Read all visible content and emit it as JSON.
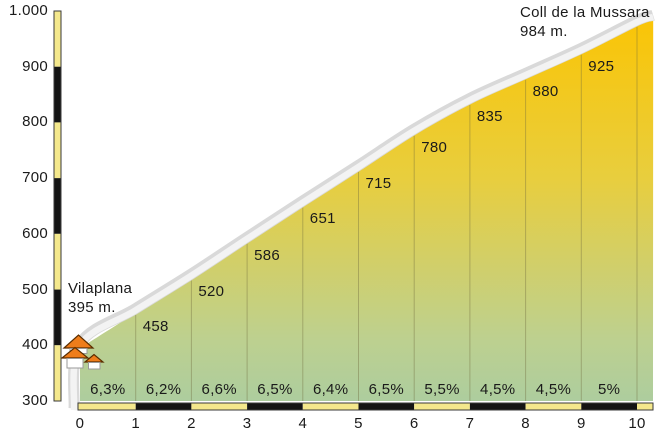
{
  "summit": {
    "name": "Coll de la Mussara",
    "elevation": "984 m."
  },
  "start": {
    "name": "Vilaplana",
    "elevation": "395 m."
  },
  "chart_data": {
    "type": "area",
    "title": "Coll de la Mussara 984 m.",
    "xlabel": "",
    "ylabel": "",
    "xlim": [
      0,
      10.29
    ],
    "ylim": [
      300,
      1000
    ],
    "grid": "vertical-km-lines",
    "legend": "none",
    "x_ticks": {
      "values": [
        0,
        1,
        2,
        3,
        4,
        5,
        6,
        7,
        8,
        9,
        10
      ],
      "labels": [
        "0",
        "1",
        "2",
        "3",
        "4",
        "5",
        "6",
        "7",
        "8",
        "9",
        "10"
      ]
    },
    "y_ticks": {
      "values": [
        1000,
        900,
        800,
        700,
        600,
        500,
        400,
        300
      ],
      "labels": [
        "1.000",
        "900",
        "800",
        "700",
        "600",
        "500",
        "400",
        "300"
      ]
    },
    "profile_points": {
      "km": [
        0,
        1,
        2,
        3,
        4,
        5,
        6,
        7,
        8,
        9,
        10,
        10.29
      ],
      "elevation_m": [
        395,
        458,
        520,
        586,
        651,
        715,
        780,
        835,
        880,
        925,
        975,
        984
      ]
    },
    "elevation_labels": [
      {
        "km": 1,
        "text": "458"
      },
      {
        "km": 2,
        "text": "520"
      },
      {
        "km": 3,
        "text": "586"
      },
      {
        "km": 4,
        "text": "651"
      },
      {
        "km": 5,
        "text": "715"
      },
      {
        "km": 6,
        "text": "780"
      },
      {
        "km": 7,
        "text": "835"
      },
      {
        "km": 8,
        "text": "880"
      },
      {
        "km": 9,
        "text": "925"
      }
    ],
    "segment_gradients": [
      {
        "from_km": 0,
        "to_km": 1,
        "text": "6,3%"
      },
      {
        "from_km": 1,
        "to_km": 2,
        "text": "6,2%"
      },
      {
        "from_km": 2,
        "to_km": 3,
        "text": "6,6%"
      },
      {
        "from_km": 3,
        "to_km": 4,
        "text": "6,5%"
      },
      {
        "from_km": 4,
        "to_km": 5,
        "text": "6,4%"
      },
      {
        "from_km": 5,
        "to_km": 6,
        "text": "6,5%"
      },
      {
        "from_km": 6,
        "to_km": 7,
        "text": "5,5%"
      },
      {
        "from_km": 7,
        "to_km": 8,
        "text": "4,5%"
      },
      {
        "from_km": 8,
        "to_km": 9,
        "text": "4,5%"
      },
      {
        "from_km": 9,
        "to_km": 10,
        "text": "5%"
      }
    ],
    "colors": {
      "fill_top": "#FBC403",
      "fill_upper": "#E8CE3E",
      "fill_lower": "#BDD08F",
      "fill_bottom": "#ADCD9E",
      "axis_yellow": "#F4E88C",
      "axis_black": "#141414",
      "axis_outline": "#3a3a3a",
      "road_gray": "#D9D9D9",
      "road_white": "#F3F3F3",
      "gridline": "rgba(110,105,60,0.40)",
      "text": "#1a1a1a",
      "house_orange": "#EE7D1B",
      "house_outline": "#5a2d00"
    }
  }
}
